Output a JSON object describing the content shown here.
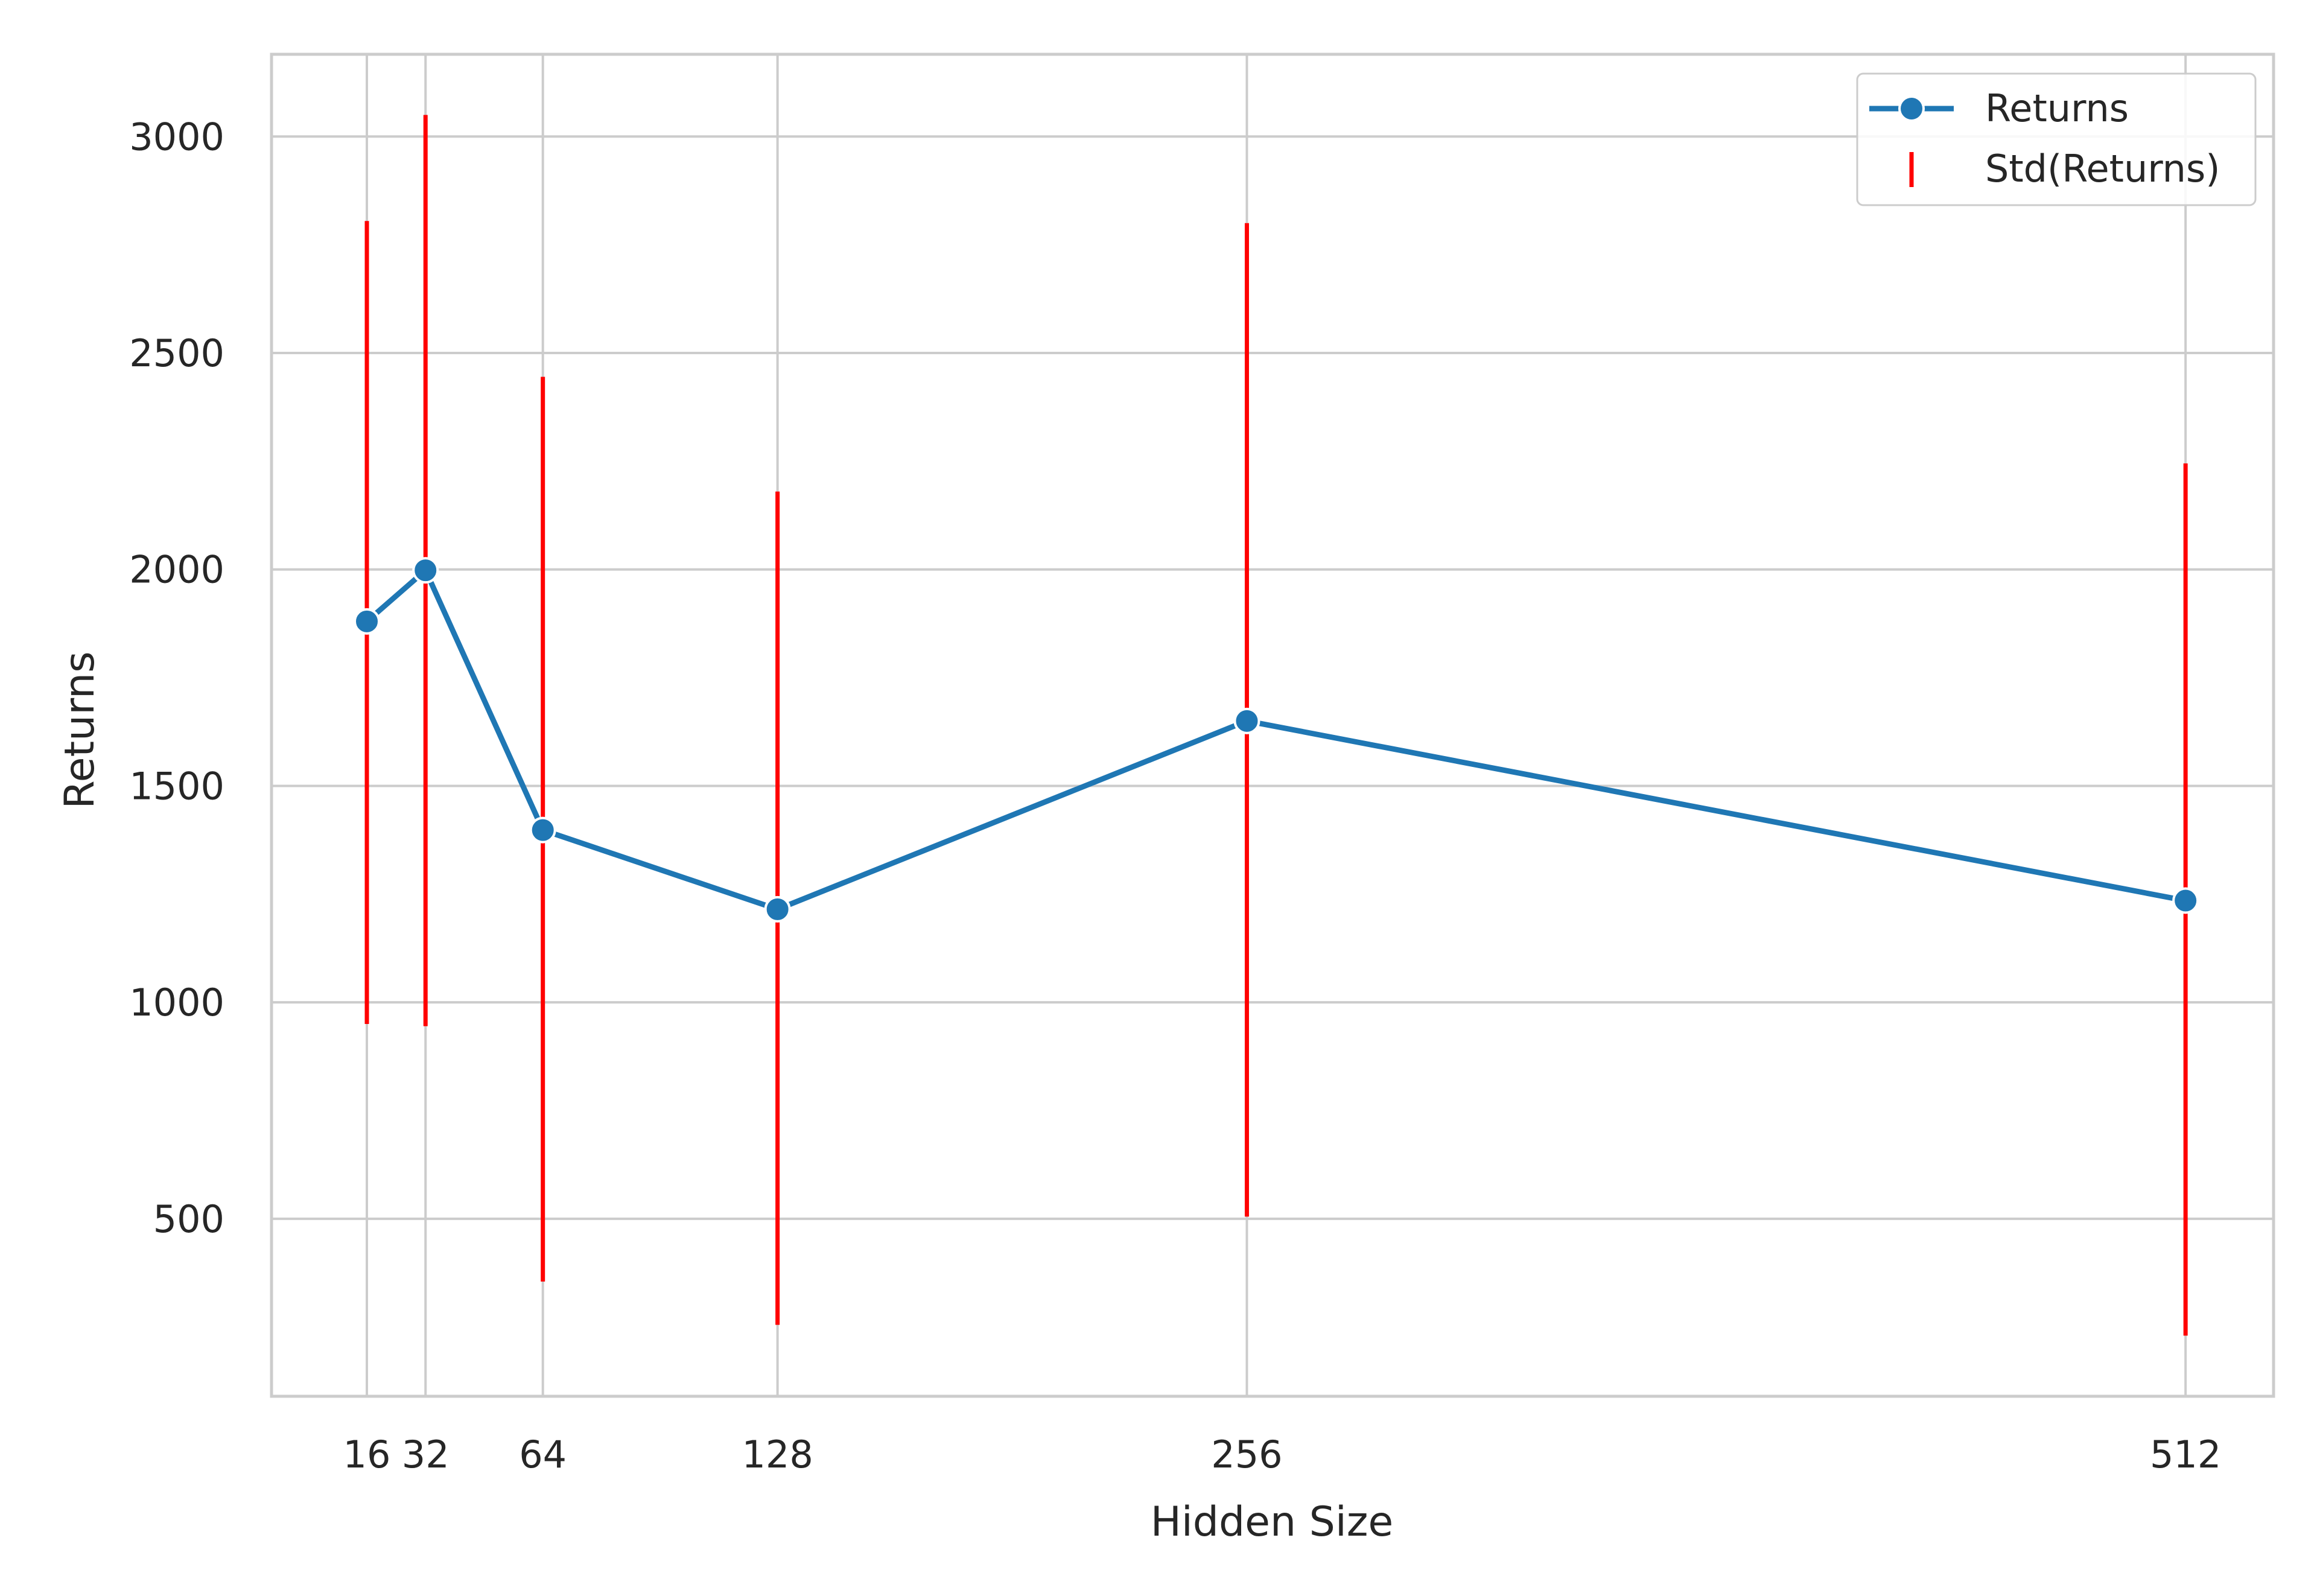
{
  "chart_data": {
    "type": "line",
    "title": "",
    "xlabel": "Hidden Size",
    "ylabel": "Returns",
    "x": [
      16,
      32,
      64,
      128,
      256,
      512
    ],
    "x_tick_labels": [
      "16",
      "32",
      "64",
      "128",
      "256",
      "512"
    ],
    "y_ticks": [
      500,
      1000,
      1500,
      2000,
      2500,
      3000
    ],
    "y_tick_labels": [
      "500",
      "1000",
      "1500",
      "2000",
      "2500",
      "3000"
    ],
    "xlim": [
      -10,
      536
    ],
    "ylim": [
      90,
      3190
    ],
    "grid": true,
    "legend_position": "top-right",
    "series": [
      {
        "name": "Returns",
        "color": "#1f77b4",
        "marker": "circle",
        "values": [
          1880,
          1998,
          1398,
          1215,
          1650,
          1235
        ]
      }
    ],
    "error_bars": {
      "name": "Std(Returns)",
      "color": "#ff0000",
      "lower": [
        950,
        945,
        355,
        255,
        505,
        230
      ],
      "upper": [
        2805,
        3050,
        2445,
        2180,
        2800,
        2245
      ]
    }
  }
}
